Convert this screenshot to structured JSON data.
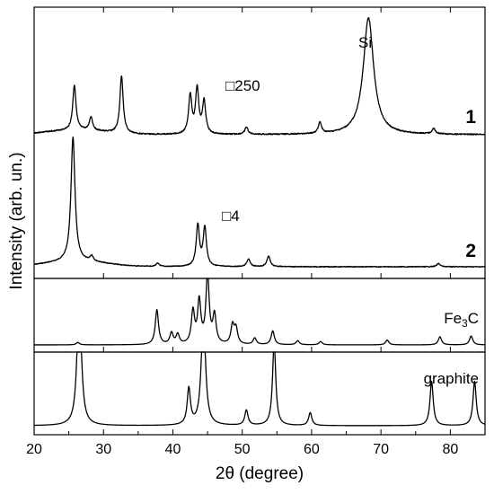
{
  "chart_data": {
    "type": "line",
    "title": "",
    "xlabel": "2θ (degree)",
    "ylabel": "Intensity (arb. un.)",
    "xlim": [
      20,
      85
    ],
    "x_ticks": [
      "20",
      "30",
      "40",
      "50",
      "60",
      "70",
      "80"
    ],
    "x_tick_values": [
      20,
      30,
      40,
      50,
      60,
      70,
      80
    ],
    "grid": false,
    "legend": "none",
    "panels": [
      {
        "series": [
          {
            "label": "1",
            "annotations": [
              "Si",
              "□250"
            ],
            "peaks": [
              {
                "x": 25.8,
                "y": 0.5
              },
              {
                "x": 28.2,
                "y": 0.15
              },
              {
                "x": 32.6,
                "y": 0.64
              },
              {
                "x": 42.5,
                "y": 0.43
              },
              {
                "x": 43.5,
                "y": 0.5
              },
              {
                "x": 44.5,
                "y": 0.36
              },
              {
                "x": 50.6,
                "y": 0.08
              },
              {
                "x": 61.2,
                "y": 0.12
              },
              {
                "x": 68.2,
                "y": 1.3
              },
              {
                "x": 77.6,
                "y": 0.06
              }
            ]
          },
          {
            "label": "2",
            "annotations": [
              "□4"
            ],
            "peaks": [
              {
                "x": 25.6,
                "y": 1.15
              },
              {
                "x": 28.3,
                "y": 0.05
              },
              {
                "x": 37.8,
                "y": 0.03
              },
              {
                "x": 43.6,
                "y": 0.38
              },
              {
                "x": 44.6,
                "y": 0.36
              },
              {
                "x": 50.9,
                "y": 0.07
              },
              {
                "x": 53.8,
                "y": 0.1
              },
              {
                "x": 78.3,
                "y": 0.03
              }
            ]
          }
        ]
      },
      {
        "series": [
          {
            "label": "Fe3C",
            "peaks": [
              {
                "x": 26.3,
                "y": 0.03
              },
              {
                "x": 37.7,
                "y": 0.43
              },
              {
                "x": 39.8,
                "y": 0.14
              },
              {
                "x": 40.7,
                "y": 0.12
              },
              {
                "x": 42.9,
                "y": 0.4
              },
              {
                "x": 43.8,
                "y": 0.52
              },
              {
                "x": 45.0,
                "y": 0.85
              },
              {
                "x": 46.0,
                "y": 0.35
              },
              {
                "x": 48.6,
                "y": 0.23
              },
              {
                "x": 49.1,
                "y": 0.19
              },
              {
                "x": 51.8,
                "y": 0.08
              },
              {
                "x": 54.4,
                "y": 0.17
              },
              {
                "x": 58.0,
                "y": 0.05
              },
              {
                "x": 61.3,
                "y": 0.04
              },
              {
                "x": 70.9,
                "y": 0.06
              },
              {
                "x": 78.5,
                "y": 0.1
              },
              {
                "x": 83.0,
                "y": 0.11
              }
            ]
          }
        ]
      },
      {
        "series": [
          {
            "label": "graphite",
            "peaks": [
              {
                "x": 26.5,
                "y": 1.2
              },
              {
                "x": 42.3,
                "y": 0.31
              },
              {
                "x": 44.4,
                "y": 1.0
              },
              {
                "x": 50.6,
                "y": 0.13
              },
              {
                "x": 54.6,
                "y": 0.71
              },
              {
                "x": 59.8,
                "y": 0.11
              },
              {
                "x": 77.3,
                "y": 0.38
              },
              {
                "x": 83.5,
                "y": 0.38
              }
            ]
          }
        ]
      }
    ]
  },
  "labels": {
    "xlabel": "2θ (degree)",
    "ylabel": "Intensity (arb. un.)",
    "si": "Si",
    "mult250": "□250",
    "mult4": "□4",
    "num1": "1",
    "num2": "2",
    "fe3c_main": "Fe",
    "fe3c_sub": "3",
    "fe3c_end": "C",
    "graphite": "graphite",
    "ticks": [
      "20",
      "30",
      "40",
      "50",
      "60",
      "70",
      "80"
    ]
  }
}
